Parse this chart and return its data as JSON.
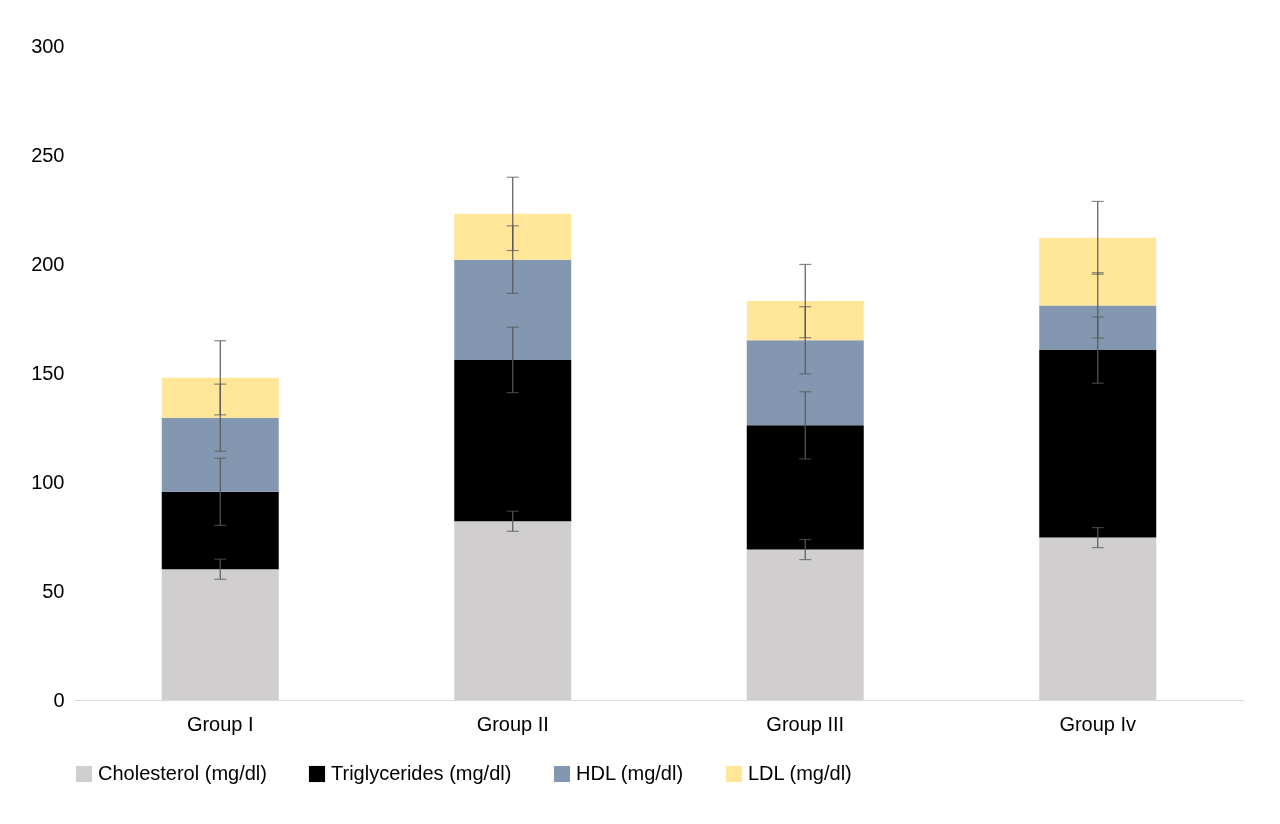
{
  "chart_data": {
    "type": "bar",
    "stacked": true,
    "categories": [
      "Group I",
      "Group II",
      "Group III",
      "Group Iv"
    ],
    "series": [
      {
        "name": "Cholesterol (mg/dl)",
        "color": "#d0cece",
        "values": [
          60,
          82,
          69,
          74.5
        ],
        "errors": [
          4.6,
          4.6,
          4.6,
          4.6
        ]
      },
      {
        "name": "Triglycerides (mg/dl)",
        "color": "#000000",
        "values": [
          35.5,
          74,
          57,
          86
        ],
        "errors": [
          15.4,
          15,
          15.4,
          15.2
        ]
      },
      {
        "name": "HDL (mg/dl)",
        "color": "#8497b0",
        "values": [
          34,
          46,
          39,
          20.5
        ],
        "errors": [
          15.4,
          15.5,
          15.4,
          15
        ]
      },
      {
        "name": "LDL (mg/dl)",
        "color": "#ffe699",
        "values": [
          18.3,
          21,
          18,
          31
        ],
        "errors": [
          17,
          16.8,
          16.8,
          16.7
        ]
      }
    ],
    "ylim": [
      0,
      300
    ],
    "yticks": [
      0,
      50,
      100,
      150,
      200,
      250,
      300
    ],
    "grid": false,
    "legend": "bottom"
  }
}
